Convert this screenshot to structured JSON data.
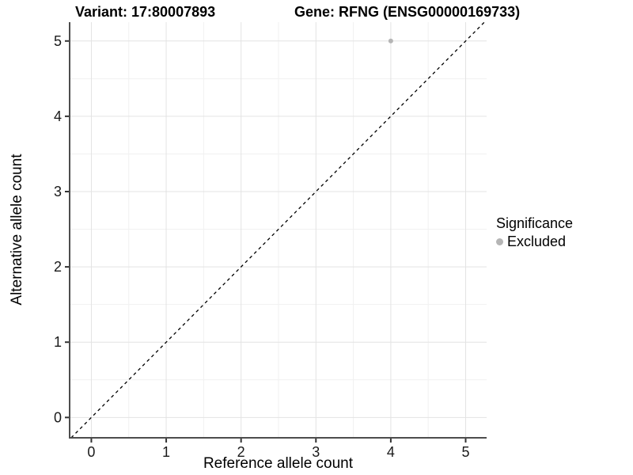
{
  "chart_data": {
    "type": "scatter",
    "title_left": "Variant: 17:80007893",
    "title_right": "Gene: RFNG (ENSG00000169733)",
    "xlabel": "Reference allele count",
    "ylabel": "Alternative allele count",
    "xlim": [
      -0.29,
      5.28
    ],
    "ylim": [
      -0.27,
      5.25
    ],
    "xticks": [
      0,
      1,
      2,
      3,
      4,
      5
    ],
    "yticks": [
      0,
      1,
      2,
      3,
      4,
      5
    ],
    "grid": {
      "major": true,
      "minor": true,
      "minor_step": 0.5
    },
    "points": [
      {
        "x": 4,
        "y": 5,
        "series": "Excluded"
      }
    ],
    "identity_line": {
      "style": "dashed",
      "dash": "4,4",
      "color": "#000000"
    },
    "legend": {
      "title": "Significance",
      "position": "right",
      "items": [
        {
          "label": "Excluded",
          "color": "#b5b5b5"
        }
      ]
    }
  },
  "colors": {
    "background": "#ffffff",
    "grid_major": "#e3e3e3",
    "grid_minor": "#f1f1f1",
    "axis_line": "#4d4d4d",
    "tick_mark": "#333333",
    "tick_label": "#1a1a1a",
    "title_text": "#000000",
    "point_excluded": "#b5b5b5"
  }
}
